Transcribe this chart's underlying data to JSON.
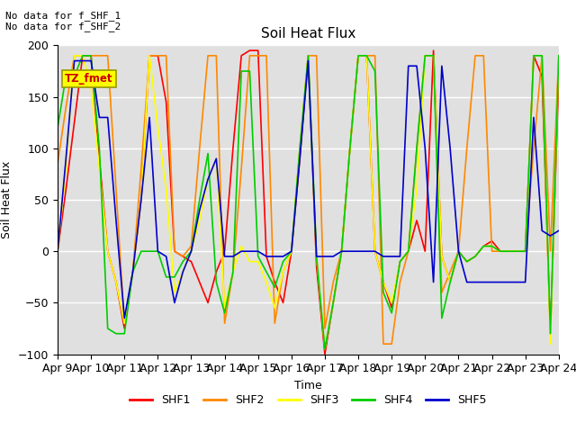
{
  "title": "Soil Heat Flux",
  "xlabel": "Time",
  "ylabel": "Soil Heat Flux",
  "ylim": [
    -100,
    200
  ],
  "annotation_text": "No data for f_SHF_1\nNo data for f_SHF_2",
  "legend_box_text": "TZ_fmet",
  "legend_box_color": "#ffff00",
  "legend_box_text_color": "#cc0000",
  "background_color": "#e0e0e0",
  "grid_color": "#ffffff",
  "xtick_labels": [
    "Apr 9",
    "Apr 10",
    "Apr 11",
    "Apr 12",
    "Apr 13",
    "Apr 14",
    "Apr 15",
    "Apr 16",
    "Apr 17",
    "Apr 18",
    "Apr 19",
    "Apr 20",
    "Apr 21",
    "Apr 22",
    "Apr 23",
    "Apr 24"
  ],
  "series": {
    "SHF1": {
      "color": "#ff0000",
      "x": [
        0,
        0.25,
        0.5,
        0.75,
        1,
        1.25,
        1.5,
        1.75,
        2,
        2.25,
        2.5,
        2.75,
        3,
        3.25,
        3.5,
        3.75,
        4,
        4.25,
        4.5,
        4.75,
        5,
        5.25,
        5.5,
        5.75,
        6,
        6.25,
        6.5,
        6.75,
        7,
        7.25,
        7.5,
        7.75,
        8,
        8.25,
        8.5,
        8.75,
        9,
        9.25,
        9.5,
        9.75,
        10,
        10.25,
        10.5,
        10.75,
        11,
        11.25,
        11.5,
        11.75,
        12,
        12.25,
        12.5,
        12.75,
        13,
        13.25,
        13.5,
        13.75,
        14,
        14.25,
        14.5,
        14.75,
        15
      ],
      "y": [
        0,
        60,
        125,
        190,
        190,
        90,
        0,
        -30,
        -75,
        -20,
        50,
        190,
        190,
        145,
        0,
        -5,
        -10,
        -30,
        -50,
        -20,
        0,
        100,
        190,
        195,
        195,
        -5,
        -30,
        -50,
        0,
        90,
        190,
        -15,
        -100,
        -50,
        0,
        100,
        190,
        190,
        0,
        -30,
        -55,
        -10,
        0,
        30,
        0,
        195,
        -5,
        -30,
        0,
        -10,
        -5,
        5,
        10,
        0,
        0,
        0,
        0,
        190,
        170,
        -80,
        170
      ]
    },
    "SHF2": {
      "color": "#ff8800",
      "x": [
        0,
        0.25,
        0.5,
        0.75,
        1,
        1.25,
        1.5,
        1.75,
        2,
        2.25,
        2.5,
        2.75,
        3,
        3.25,
        3.5,
        3.75,
        4,
        4.25,
        4.5,
        4.75,
        5,
        5.25,
        5.5,
        5.75,
        6,
        6.25,
        6.5,
        6.75,
        7,
        7.25,
        7.5,
        7.75,
        8,
        8.25,
        8.5,
        8.75,
        9,
        9.25,
        9.5,
        9.75,
        10,
        10.25,
        10.5,
        10.75,
        11,
        11.25,
        11.5,
        11.75,
        12,
        12.25,
        12.5,
        12.75,
        13,
        13.25,
        13.5,
        13.75,
        14,
        14.25,
        14.5,
        14.75,
        15
      ],
      "y": [
        85,
        140,
        190,
        190,
        190,
        190,
        190,
        60,
        -70,
        -20,
        80,
        190,
        190,
        190,
        0,
        -5,
        5,
        100,
        190,
        190,
        -70,
        -20,
        80,
        190,
        190,
        190,
        -70,
        -20,
        0,
        100,
        190,
        190,
        -75,
        -30,
        0,
        100,
        190,
        190,
        190,
        -90,
        -90,
        -30,
        0,
        100,
        190,
        190,
        -40,
        -20,
        0,
        100,
        190,
        190,
        0,
        0,
        0,
        0,
        0,
        100,
        190,
        0,
        190
      ]
    },
    "SHF3": {
      "color": "#ffff00",
      "x": [
        0,
        0.25,
        0.5,
        0.75,
        1,
        1.25,
        1.5,
        1.75,
        2,
        2.25,
        2.5,
        2.75,
        3,
        3.25,
        3.5,
        3.75,
        4,
        4.25,
        4.5,
        4.75,
        5,
        5.25,
        5.5,
        5.75,
        6,
        6.25,
        6.5,
        6.75,
        7,
        7.25,
        7.5,
        7.75,
        8,
        8.25,
        8.5,
        8.75,
        9,
        9.25,
        9.5,
        9.75,
        10,
        10.25,
        10.5,
        10.75,
        11,
        11.25,
        11.5,
        11.75,
        12,
        12.25,
        12.5,
        12.75,
        13,
        13.25,
        13.5,
        13.75,
        14,
        14.25,
        14.5,
        14.75,
        15
      ],
      "y": [
        0,
        80,
        190,
        190,
        160,
        80,
        0,
        -30,
        -70,
        -20,
        50,
        190,
        120,
        60,
        -40,
        -20,
        0,
        30,
        70,
        90,
        -55,
        -20,
        5,
        -10,
        -10,
        -30,
        -55,
        -20,
        0,
        100,
        190,
        -5,
        -95,
        -50,
        0,
        100,
        190,
        190,
        0,
        -30,
        -50,
        -10,
        0,
        60,
        190,
        190,
        -5,
        -30,
        0,
        -10,
        -5,
        5,
        5,
        0,
        0,
        0,
        0,
        190,
        190,
        -90,
        190
      ]
    },
    "SHF4": {
      "color": "#00cc00",
      "x": [
        0,
        0.25,
        0.5,
        0.75,
        1,
        1.25,
        1.5,
        1.75,
        2,
        2.25,
        2.5,
        2.75,
        3,
        3.25,
        3.5,
        3.75,
        4,
        4.25,
        4.5,
        4.75,
        5,
        5.25,
        5.5,
        5.75,
        6,
        6.25,
        6.5,
        6.75,
        7,
        7.25,
        7.5,
        7.75,
        8,
        8.25,
        8.5,
        8.75,
        9,
        9.25,
        9.5,
        9.75,
        10,
        10.25,
        10.5,
        10.75,
        11,
        11.25,
        11.5,
        11.75,
        12,
        12.25,
        12.5,
        12.75,
        13,
        13.25,
        13.5,
        13.75,
        14,
        14.25,
        14.5,
        14.75,
        15
      ],
      "y": [
        120,
        170,
        170,
        190,
        190,
        100,
        -75,
        -80,
        -80,
        -20,
        0,
        0,
        0,
        -25,
        -25,
        -10,
        0,
        50,
        95,
        -30,
        -60,
        -20,
        175,
        175,
        -5,
        -20,
        -35,
        -10,
        0,
        100,
        190,
        -5,
        -95,
        -50,
        0,
        100,
        190,
        190,
        175,
        -40,
        -60,
        -10,
        0,
        100,
        190,
        190,
        -65,
        -30,
        0,
        -10,
        -5,
        5,
        5,
        0,
        0,
        0,
        0,
        190,
        190,
        -80,
        190
      ]
    },
    "SHF5": {
      "color": "#0000cc",
      "x": [
        0,
        0.25,
        0.5,
        0.75,
        1,
        1.25,
        1.5,
        1.75,
        2,
        2.25,
        2.5,
        2.75,
        3,
        3.25,
        3.5,
        3.75,
        4,
        4.25,
        4.5,
        4.75,
        5,
        5.25,
        5.5,
        5.75,
        6,
        6.25,
        6.5,
        6.75,
        7,
        7.25,
        7.5,
        7.75,
        8,
        8.25,
        8.5,
        8.75,
        9,
        9.25,
        9.5,
        9.75,
        10,
        10.25,
        10.5,
        10.75,
        11,
        11.25,
        11.5,
        11.75,
        12,
        12.25,
        12.5,
        12.75,
        13,
        13.25,
        13.5,
        13.75,
        14,
        14.25,
        14.5,
        14.75,
        15
      ],
      "y": [
        0,
        90,
        185,
        185,
        185,
        130,
        130,
        30,
        -65,
        -20,
        50,
        130,
        0,
        -5,
        -50,
        -20,
        0,
        40,
        70,
        90,
        -5,
        -5,
        0,
        0,
        0,
        -5,
        -5,
        -5,
        0,
        90,
        185,
        -5,
        -5,
        -5,
        0,
        0,
        0,
        0,
        0,
        -5,
        -5,
        -5,
        180,
        180,
        100,
        -30,
        180,
        100,
        0,
        -30,
        -30,
        -30,
        -30,
        -30,
        -30,
        -30,
        -30,
        130,
        20,
        15,
        20
      ]
    }
  }
}
